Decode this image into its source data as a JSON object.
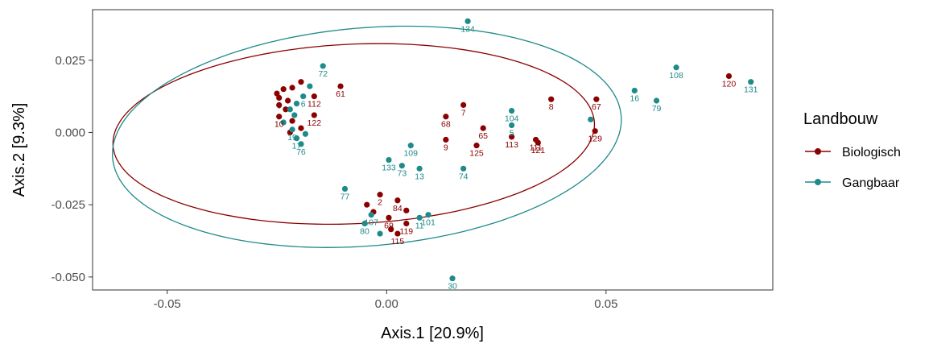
{
  "chart_data": {
    "type": "scatter",
    "title": "",
    "xlabel": "Axis.1   [20.9%]",
    "ylabel": "Axis.2   [9.3%]",
    "xlim": [
      -0.067,
      0.088
    ],
    "ylim": [
      -0.0545,
      0.0425
    ],
    "xticks": [
      -0.05,
      0.0,
      0.05
    ],
    "xtick_labels": [
      "-0.05",
      "0.00",
      "0.05"
    ],
    "yticks": [
      -0.05,
      -0.025,
      0.0,
      0.025
    ],
    "ytick_labels": [
      "-0.050",
      "-0.025",
      "0.000",
      "0.025"
    ],
    "grid": false,
    "legend": {
      "title": "Landbouw",
      "position": "right"
    },
    "series": [
      {
        "name": "Biologisch",
        "color": "#8B0000",
        "ellipse": {
          "cx": -0.0075,
          "cy": -0.0005,
          "rx": 0.055,
          "ry": 0.031,
          "angle_deg": 5
        },
        "points": [
          {
            "label": "120",
            "x": 0.078,
            "y": 0.0195
          },
          {
            "label": "67",
            "x": 0.0478,
            "y": 0.0115
          },
          {
            "label": "8",
            "x": 0.0375,
            "y": 0.0115
          },
          {
            "label": "7",
            "x": 0.0175,
            "y": 0.0095
          },
          {
            "label": "68",
            "x": 0.0135,
            "y": 0.0055
          },
          {
            "label": "65",
            "x": 0.022,
            "y": 0.0015
          },
          {
            "label": "9",
            "x": 0.0135,
            "y": -0.0025
          },
          {
            "label": "125",
            "x": 0.0205,
            "y": -0.0045
          },
          {
            "label": "113",
            "x": 0.0285,
            "y": -0.0015
          },
          {
            "label": "111",
            "x": 0.034,
            "y": -0.0025
          },
          {
            "label": "121",
            "x": 0.0345,
            "y": -0.0035
          },
          {
            "label": "129",
            "x": 0.0475,
            "y": 0.0005
          },
          {
            "label": "61",
            "x": -0.0105,
            "y": 0.016
          },
          {
            "label": "112",
            "x": -0.0165,
            "y": 0.0125
          },
          {
            "label": "122",
            "x": -0.0165,
            "y": 0.006
          },
          {
            "label": "",
            "x": -0.0195,
            "y": 0.0175
          },
          {
            "label": "",
            "x": -0.0215,
            "y": 0.0155
          },
          {
            "label": "",
            "x": -0.0235,
            "y": 0.015
          },
          {
            "label": "",
            "x": -0.025,
            "y": 0.0135
          },
          {
            "label": "6",
            "x": -0.0245,
            "y": 0.012
          },
          {
            "label": "",
            "x": -0.0225,
            "y": 0.011
          },
          {
            "label": "",
            "x": -0.0245,
            "y": 0.0095
          },
          {
            "label": "",
            "x": -0.023,
            "y": 0.008
          },
          {
            "label": "10",
            "x": -0.0245,
            "y": 0.0055
          },
          {
            "label": "",
            "x": -0.0215,
            "y": 0.004
          },
          {
            "label": "",
            "x": -0.0195,
            "y": 0.0015
          },
          {
            "label": "",
            "x": -0.022,
            "y": 0.0
          },
          {
            "label": "2",
            "x": -0.0015,
            "y": -0.0215
          },
          {
            "label": "",
            "x": -0.0045,
            "y": -0.025
          },
          {
            "label": "84",
            "x": 0.0025,
            "y": -0.0235
          },
          {
            "label": "",
            "x": 0.0045,
            "y": -0.027
          },
          {
            "label": "",
            "x": -0.003,
            "y": -0.0275
          },
          {
            "label": "69",
            "x": 0.0005,
            "y": -0.0295
          },
          {
            "label": "119",
            "x": 0.0045,
            "y": -0.0315
          },
          {
            "label": "",
            "x": 0.001,
            "y": -0.0335
          },
          {
            "label": "115",
            "x": 0.0025,
            "y": -0.035
          }
        ]
      },
      {
        "name": "Gangbaar",
        "color": "#1F8A8A",
        "ellipse": {
          "cx": -0.0045,
          "cy": -0.0015,
          "rx": 0.0585,
          "ry": 0.0375,
          "angle_deg": 10
        },
        "points": [
          {
            "label": "134",
            "x": 0.0185,
            "y": 0.0385
          },
          {
            "label": "108",
            "x": 0.066,
            "y": 0.0225
          },
          {
            "label": "131",
            "x": 0.083,
            "y": 0.0175
          },
          {
            "label": "16",
            "x": 0.0565,
            "y": 0.0145
          },
          {
            "label": "79",
            "x": 0.0615,
            "y": 0.011
          },
          {
            "label": "104",
            "x": 0.0285,
            "y": 0.0075
          },
          {
            "label": "5",
            "x": 0.0285,
            "y": 0.0025
          },
          {
            "label": "",
            "x": 0.0465,
            "y": 0.0045
          },
          {
            "label": "109",
            "x": 0.0055,
            "y": -0.0045
          },
          {
            "label": "133",
            "x": 0.0005,
            "y": -0.0095
          },
          {
            "label": "73",
            "x": 0.0035,
            "y": -0.0115
          },
          {
            "label": "13",
            "x": 0.0075,
            "y": -0.0125
          },
          {
            "label": "74",
            "x": 0.0175,
            "y": -0.0125
          },
          {
            "label": "77",
            "x": -0.0095,
            "y": -0.0195
          },
          {
            "label": "101",
            "x": 0.0095,
            "y": -0.0285
          },
          {
            "label": "11",
            "x": 0.0075,
            "y": -0.0295
          },
          {
            "label": "107",
            "x": -0.0035,
            "y": -0.0285
          },
          {
            "label": "80",
            "x": -0.005,
            "y": -0.0315
          },
          {
            "label": "",
            "x": -0.0015,
            "y": -0.035
          },
          {
            "label": "30",
            "x": 0.015,
            "y": -0.0505
          },
          {
            "label": "72",
            "x": -0.0145,
            "y": 0.023
          },
          {
            "label": "",
            "x": -0.0175,
            "y": 0.016
          },
          {
            "label": "6",
            "x": -0.019,
            "y": 0.0125
          },
          {
            "label": "",
            "x": -0.0205,
            "y": 0.01
          },
          {
            "label": "",
            "x": -0.022,
            "y": 0.008
          },
          {
            "label": "",
            "x": -0.021,
            "y": 0.006
          },
          {
            "label": "",
            "x": -0.0235,
            "y": 0.0035
          },
          {
            "label": "19",
            "x": -0.0215,
            "y": 0.001
          },
          {
            "label": "",
            "x": -0.0185,
            "y": -0.0005
          },
          {
            "label": "17",
            "x": -0.0205,
            "y": -0.002
          },
          {
            "label": "76",
            "x": -0.0195,
            "y": -0.004
          }
        ]
      }
    ]
  }
}
